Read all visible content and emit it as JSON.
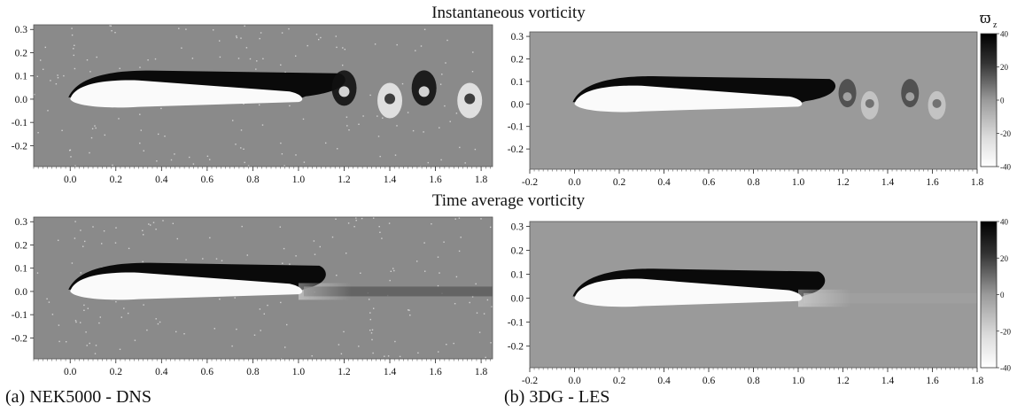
{
  "titles": {
    "instantaneous": "Instantaneous vorticity",
    "time_average": "Time average vorticity"
  },
  "captions": {
    "left": "(a) NEK5000 - DNS",
    "right": "(b) 3DG - LES"
  },
  "colorbar": {
    "label": "ϖ",
    "label_sub": "z",
    "ticks": [
      "40",
      "20",
      "0",
      "-20",
      "-40"
    ]
  },
  "axes": {
    "dns_x_ticks": [
      "0.0",
      "0.2",
      "0.4",
      "0.6",
      "0.8",
      "1.0",
      "1.2",
      "1.4",
      "1.6",
      "1.8"
    ],
    "les_x_ticks": [
      "-0.2",
      "0.0",
      "0.2",
      "0.4",
      "0.6",
      "0.8",
      "1.0",
      "1.2",
      "1.4",
      "1.6",
      "1.8"
    ],
    "y_ticks": [
      "0.3",
      "0.2",
      "0.1",
      "0.0",
      "-0.1",
      "-0.2"
    ]
  },
  "colors": {
    "field_dns": "#8a8a8a",
    "field_les": "#9a9a9a",
    "positive_vorticity": "#0a0a0a",
    "negative_vorticity": "#fafafa"
  }
}
